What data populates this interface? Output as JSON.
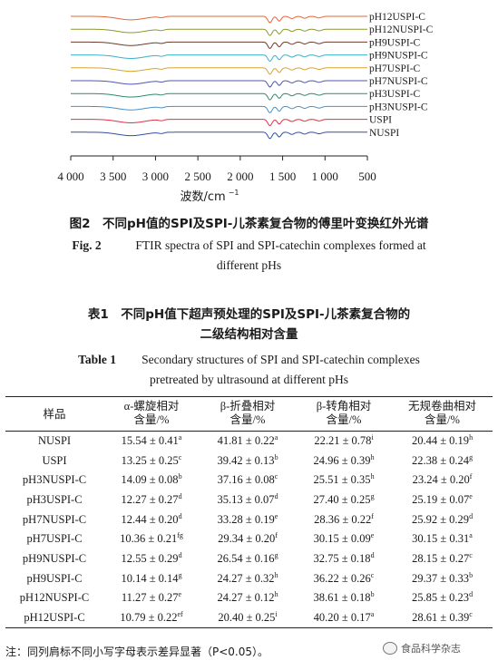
{
  "figure": {
    "chart_data": {
      "type": "line",
      "xlabel": "波数/cm",
      "xlabel_superscript": "−1",
      "x_ticks": [
        "4 000",
        "3 500",
        "3 000",
        "2 500",
        "2 000",
        "1 500",
        "1 000",
        "500"
      ],
      "xlim": [
        4000,
        500
      ],
      "series": [
        {
          "name": "pH12USPI-C",
          "color": "#e0673a"
        },
        {
          "name": "pH12NUSPI-C",
          "color": "#8a9a2e"
        },
        {
          "name": "pH9USPI-C",
          "color": "#6b3a2a"
        },
        {
          "name": "pH9NUSPI-C",
          "color": "#3ab0c8"
        },
        {
          "name": "pH7USPI-C",
          "color": "#d8a52e"
        },
        {
          "name": "pH7NUSPI-C",
          "color": "#4a58b0"
        },
        {
          "name": "pH3USPI-C",
          "color": "#2e8a6a"
        },
        {
          "name": "pH3NUSPI-C",
          "color": "#4a90c8"
        },
        {
          "name": "USPI",
          "color": "#e03040"
        },
        {
          "name": "NUSPI",
          "color": "#3050a0"
        }
      ]
    },
    "caption_cn": "图2　不同pH值的SPI及SPI-儿茶素复合物的傅里叶变换红外光谱",
    "caption_en_label": "Fig. 2",
    "caption_en_line1": "FTIR spectra of SPI and SPI-catechin complexes formed at",
    "caption_en_line2": "different pHs"
  },
  "table": {
    "caption_cn_line1": "表1　不同pH值下超声预处理的SPI及SPI-儿茶素复合物的",
    "caption_cn_line2": "二级结构相对含量",
    "caption_en_label": "Table 1",
    "caption_en_line1": "Secondary structures of SPI and SPI-catechin complexes",
    "caption_en_line2": "pretreated by ultrasound at different pHs",
    "headers": {
      "sample": "样品",
      "helix_1": "α-螺旋相对",
      "helix_2": "含量/%",
      "sheet_1": "β-折叠相对",
      "sheet_2": "含量/%",
      "turn_1": "β-转角相对",
      "turn_2": "含量/%",
      "coil_1": "无规卷曲相对",
      "coil_2": "含量/%"
    },
    "rows": [
      {
        "sample": "NUSPI",
        "helix": "15.54 ± 0.41",
        "helix_sup": "a",
        "sheet": "41.81 ± 0.22",
        "sheet_sup": "a",
        "turn": "22.21 ± 0.78",
        "turn_sup": "i",
        "coil": "20.44 ± 0.19",
        "coil_sup": "h"
      },
      {
        "sample": "USPI",
        "helix": "13.25 ± 0.25",
        "helix_sup": "c",
        "sheet": "39.42 ± 0.13",
        "sheet_sup": "b",
        "turn": "24.96 ± 0.39",
        "turn_sup": "h",
        "coil": "22.38 ± 0.24",
        "coil_sup": "g"
      },
      {
        "sample": "pH3NUSPI-C",
        "helix": "14.09 ± 0.08",
        "helix_sup": "b",
        "sheet": "37.16 ± 0.08",
        "sheet_sup": "c",
        "turn": "25.51 ± 0.35",
        "turn_sup": "h",
        "coil": "23.24 ± 0.20",
        "coil_sup": "f"
      },
      {
        "sample": "pH3USPI-C",
        "helix": "12.27 ± 0.27",
        "helix_sup": "d",
        "sheet": "35.13 ± 0.07",
        "sheet_sup": "d",
        "turn": "27.40 ± 0.25",
        "turn_sup": "g",
        "coil": "25.19 ± 0.07",
        "coil_sup": "e"
      },
      {
        "sample": "pH7NUSPI-C",
        "helix": "12.44 ± 0.20",
        "helix_sup": "d",
        "sheet": "33.28 ± 0.19",
        "sheet_sup": "e",
        "turn": "28.36 ± 0.22",
        "turn_sup": "f",
        "coil": "25.92 ± 0.29",
        "coil_sup": "d"
      },
      {
        "sample": "pH7USPI-C",
        "helix": "10.36 ± 0.21",
        "helix_sup": "fg",
        "sheet": "29.34 ± 0.20",
        "sheet_sup": "f",
        "turn": "30.15 ± 0.09",
        "turn_sup": "e",
        "coil": "30.15 ± 0.31",
        "coil_sup": "a"
      },
      {
        "sample": "pH9NUSPI-C",
        "helix": "12.55 ± 0.29",
        "helix_sup": "d",
        "sheet": "26.54 ± 0.16",
        "sheet_sup": "g",
        "turn": "32.75 ± 0.18",
        "turn_sup": "d",
        "coil": "28.15 ± 0.27",
        "coil_sup": "c"
      },
      {
        "sample": "pH9USPI-C",
        "helix": "10.14 ± 0.14",
        "helix_sup": "g",
        "sheet": "24.27 ± 0.32",
        "sheet_sup": "h",
        "turn": "36.22 ± 0.26",
        "turn_sup": "c",
        "coil": "29.37 ± 0.33",
        "coil_sup": "b"
      },
      {
        "sample": "pH12NUSPI-C",
        "helix": "11.27 ± 0.27",
        "helix_sup": "e",
        "sheet": "24.27 ± 0.12",
        "sheet_sup": "h",
        "turn": "38.61 ± 0.18",
        "turn_sup": "b",
        "coil": "25.85 ± 0.23",
        "coil_sup": "d"
      },
      {
        "sample": "pH12USPI-C",
        "helix": "10.79 ± 0.22",
        "helix_sup": "ef",
        "sheet": "20.40 ± 0.25",
        "sheet_sup": "i",
        "turn": "40.20 ± 0.17",
        "turn_sup": "a",
        "coil": "28.61 ± 0.39",
        "coil_sup": "c"
      }
    ],
    "note": "注：同列肩标不同小写字母表示差异显著（P<0.05）。"
  },
  "watermark": "食品科学杂志"
}
